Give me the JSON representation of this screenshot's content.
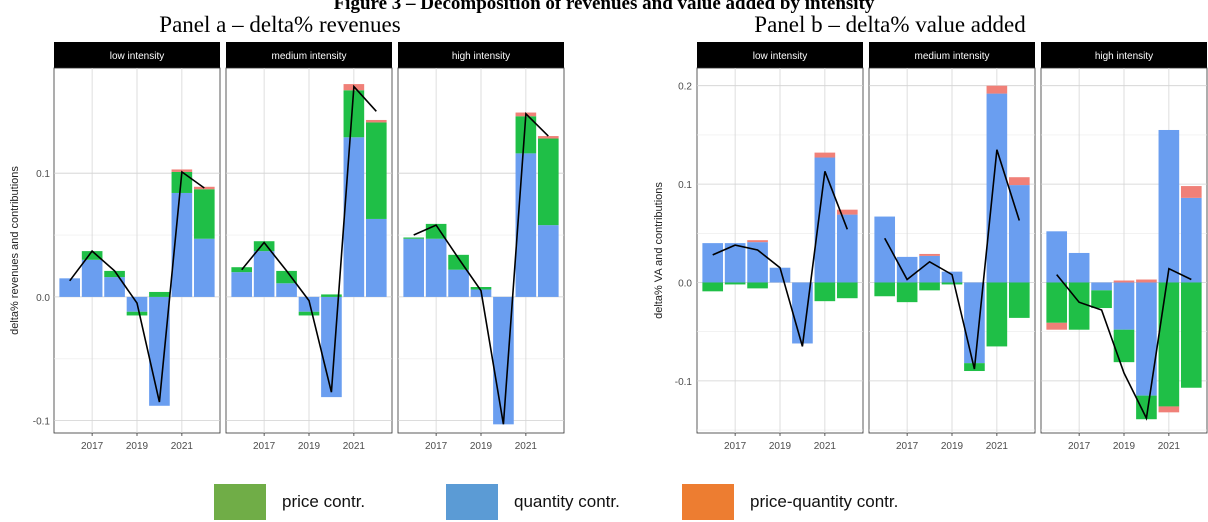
{
  "figure_caption": "Figure 3 – Decomposition of revenues and value added by intensity",
  "colors": {
    "price": "#1fbf47",
    "quantity": "#6a9ef0",
    "price_quantity": "#f08078",
    "line": "#000000",
    "strip_bg": "#000000",
    "strip_text": "#ffffff",
    "legend_price": "#70ad47",
    "legend_quantity": "#5b9bd5",
    "legend_price_quantity": "#ed7d31"
  },
  "legend": {
    "items": [
      {
        "label": "price contr.",
        "color": "#70ad47"
      },
      {
        "label": "quantity contr.",
        "color": "#5b9bd5"
      },
      {
        "label": "price-quantity contr.",
        "color": "#ed7d31"
      }
    ]
  },
  "chart_data": [
    {
      "type": "bar",
      "stacked": true,
      "title": "Panel a – delta% revenues",
      "ylabel": "delta% revenues and contributions",
      "xlabel": "",
      "ylim": [
        -0.11,
        0.185
      ],
      "yticks": [
        -0.1,
        0.0,
        0.1
      ],
      "ytick_labels": [
        "-0.1",
        "0.0",
        "0.1"
      ],
      "x": [
        2016,
        2017,
        2018,
        2019,
        2020,
        2021,
        2022
      ],
      "xticks": [
        2017,
        2019,
        2021
      ],
      "xtick_labels": [
        "2017",
        "2019",
        "2021"
      ],
      "xlim": [
        2015.3,
        2022.7
      ],
      "facets": [
        {
          "name": "low intensity",
          "price": [
            0.0,
            0.007,
            0.005,
            -0.003,
            0.004,
            0.017,
            0.04
          ],
          "quantity": [
            0.015,
            0.03,
            0.016,
            -0.012,
            -0.088,
            0.084,
            0.047
          ],
          "price_quantity": [
            0.0,
            0.0,
            0.0,
            0.0,
            0.0,
            0.002,
            0.002
          ],
          "total": [
            0.013,
            0.037,
            0.021,
            -0.005,
            -0.085,
            0.101,
            0.088
          ]
        },
        {
          "name": "medium intensity",
          "price": [
            0.004,
            0.008,
            0.01,
            -0.003,
            0.002,
            0.038,
            0.078
          ],
          "quantity": [
            0.02,
            0.037,
            0.011,
            -0.012,
            -0.081,
            0.129,
            0.063
          ],
          "price_quantity": [
            0.0,
            0.0,
            0.0,
            0.0,
            0.0,
            0.005,
            0.002
          ],
          "total": [
            0.022,
            0.044,
            0.021,
            -0.003,
            -0.077,
            0.17,
            0.15
          ]
        },
        {
          "name": "high intensity",
          "price": [
            0.001,
            0.012,
            0.012,
            0.002,
            0.0,
            0.03,
            0.07
          ],
          "quantity": [
            0.047,
            0.047,
            0.022,
            0.006,
            -0.103,
            0.116,
            0.058
          ],
          "price_quantity": [
            0.0,
            0.0,
            0.0,
            0.0,
            0.0,
            0.003,
            0.002
          ],
          "total": [
            0.05,
            0.058,
            0.031,
            0.005,
            -0.103,
            0.148,
            0.13
          ]
        }
      ]
    },
    {
      "type": "bar",
      "stacked": true,
      "title": "Panel b – delta% value added",
      "ylabel": "delta% VA and contributions",
      "xlabel": "",
      "ylim": [
        -0.153,
        0.218
      ],
      "yticks": [
        -0.1,
        0.0,
        0.1,
        0.2
      ],
      "ytick_labels": [
        "-0.1",
        "0.0",
        "0.1",
        "0.2"
      ],
      "x": [
        2016,
        2017,
        2018,
        2019,
        2020,
        2021,
        2022
      ],
      "xticks": [
        2017,
        2019,
        2021
      ],
      "xtick_labels": [
        "2017",
        "2019",
        "2021"
      ],
      "xlim": [
        2015.3,
        2022.7
      ],
      "facets": [
        {
          "name": "low intensity",
          "price": [
            -0.009,
            -0.002,
            -0.006,
            0.0,
            0.0,
            -0.019,
            -0.016
          ],
          "quantity": [
            0.04,
            0.04,
            0.041,
            0.015,
            -0.062,
            0.127,
            0.069
          ],
          "price_quantity": [
            0.0,
            0.0,
            0.002,
            0.0,
            0.0,
            0.005,
            0.005
          ],
          "total": [
            0.028,
            0.038,
            0.033,
            0.015,
            -0.065,
            0.113,
            0.054
          ]
        },
        {
          "name": "medium intensity",
          "price": [
            -0.014,
            -0.02,
            -0.008,
            -0.002,
            -0.008,
            -0.065,
            -0.036
          ],
          "quantity": [
            0.067,
            0.026,
            0.027,
            0.011,
            -0.082,
            0.192,
            0.099
          ],
          "price_quantity": [
            0.0,
            0.0,
            0.002,
            0.0,
            0.0,
            0.008,
            0.008
          ],
          "total": [
            0.045,
            0.003,
            0.021,
            0.008,
            -0.088,
            0.135,
            0.063
          ]
        },
        {
          "name": "high intensity",
          "price": [
            -0.041,
            -0.048,
            -0.018,
            -0.033,
            -0.024,
            -0.126,
            -0.107
          ],
          "quantity": [
            0.052,
            0.03,
            -0.008,
            -0.048,
            -0.115,
            0.155,
            0.086
          ],
          "price_quantity": [
            -0.007,
            0.0,
            0.0,
            0.002,
            0.003,
            -0.006,
            0.012
          ],
          "total": [
            0.008,
            -0.02,
            -0.028,
            -0.092,
            -0.138,
            0.014,
            0.003
          ]
        }
      ]
    }
  ]
}
